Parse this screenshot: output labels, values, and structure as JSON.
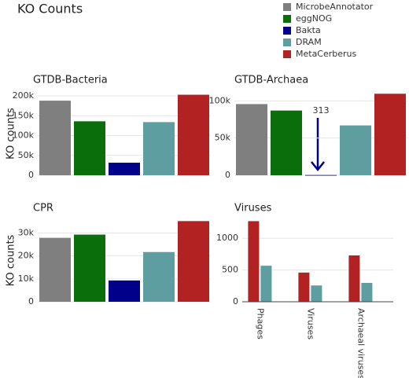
{
  "title": "KO Counts",
  "chart_data": [
    {
      "type": "bar",
      "title": "GTDB-Bacteria",
      "y_label": "KO counts",
      "series": [
        {
          "name": "MicrobeAnnotator",
          "color": "#7f7f7f",
          "values": [
            188000
          ]
        },
        {
          "name": "eggNOG",
          "color": "#0a6e0a",
          "values": [
            136000
          ]
        },
        {
          "name": "Bakta",
          "color": "#00008b",
          "values": [
            31600
          ]
        },
        {
          "name": "DRAM",
          "color": "#5f9ea0",
          "values": [
            134000
          ]
        },
        {
          "name": "MetaCerberus",
          "color": "#b22222",
          "values": [
            203000
          ]
        }
      ],
      "ylim": [
        0,
        210000
      ],
      "yticks": [
        0,
        {
          "value": 50000,
          "label": "50k"
        },
        {
          "value": 100000,
          "label": "100k"
        },
        {
          "value": 150000,
          "label": "150k"
        },
        {
          "value": 200000,
          "label": "200k"
        }
      ],
      "grid": true
    },
    {
      "type": "bar",
      "title": "GTDB-Archaea",
      "series": [
        {
          "name": "MicrobeAnnotator",
          "color": "#7f7f7f",
          "values": [
            95700
          ]
        },
        {
          "name": "eggNOG",
          "color": "#0a6e0a",
          "values": [
            87000
          ]
        },
        {
          "name": "Bakta",
          "color": "#00008b",
          "values": [
            313
          ]
        },
        {
          "name": "DRAM",
          "color": "#5f9ea0",
          "values": [
            67000
          ]
        },
        {
          "name": "MetaCerberus",
          "color": "#b22222",
          "values": [
            109600
          ]
        }
      ],
      "ylim": [
        0,
        112000
      ],
      "yticks": [
        0,
        {
          "value": 50000,
          "label": "50k"
        },
        {
          "value": 100000,
          "label": "100k"
        }
      ],
      "grid": true
    },
    {
      "type": "bar",
      "title": "CPR",
      "y_label": "KO counts",
      "series": [
        {
          "name": "MicrobeAnnotator",
          "color": "#7f7f7f",
          "values": [
            27900
          ]
        },
        {
          "name": "eggNOG",
          "color": "#0a6e0a",
          "values": [
            29300
          ]
        },
        {
          "name": "Bakta",
          "color": "#00008b",
          "values": [
            9300
          ]
        },
        {
          "name": "DRAM",
          "color": "#5f9ea0",
          "values": [
            21700
          ]
        },
        {
          "name": "MetaCerberus",
          "color": "#b22222",
          "values": [
            35200
          ]
        }
      ],
      "ylim": [
        0,
        36000
      ],
      "yticks": [
        0,
        {
          "value": 10000,
          "label": "10k"
        },
        {
          "value": 20000,
          "label": "20k"
        },
        {
          "value": 30000,
          "label": "30k"
        }
      ],
      "grid": true
    },
    {
      "type": "grouped-bar",
      "title": "Viruses",
      "categories": [
        "Phages",
        "Viruses",
        "Archaeal viruses"
      ],
      "series": [
        {
          "name": "MetaCerberus",
          "color": "#b22222",
          "values": [
            1270,
            460,
            730
          ]
        },
        {
          "name": "DRAM",
          "color": "#5f9ea0",
          "values": [
            568,
            257,
            297
          ]
        }
      ],
      "ylim": [
        0,
        1300
      ],
      "yticks": [
        0,
        500,
        1000
      ],
      "grid": true
    }
  ]
}
